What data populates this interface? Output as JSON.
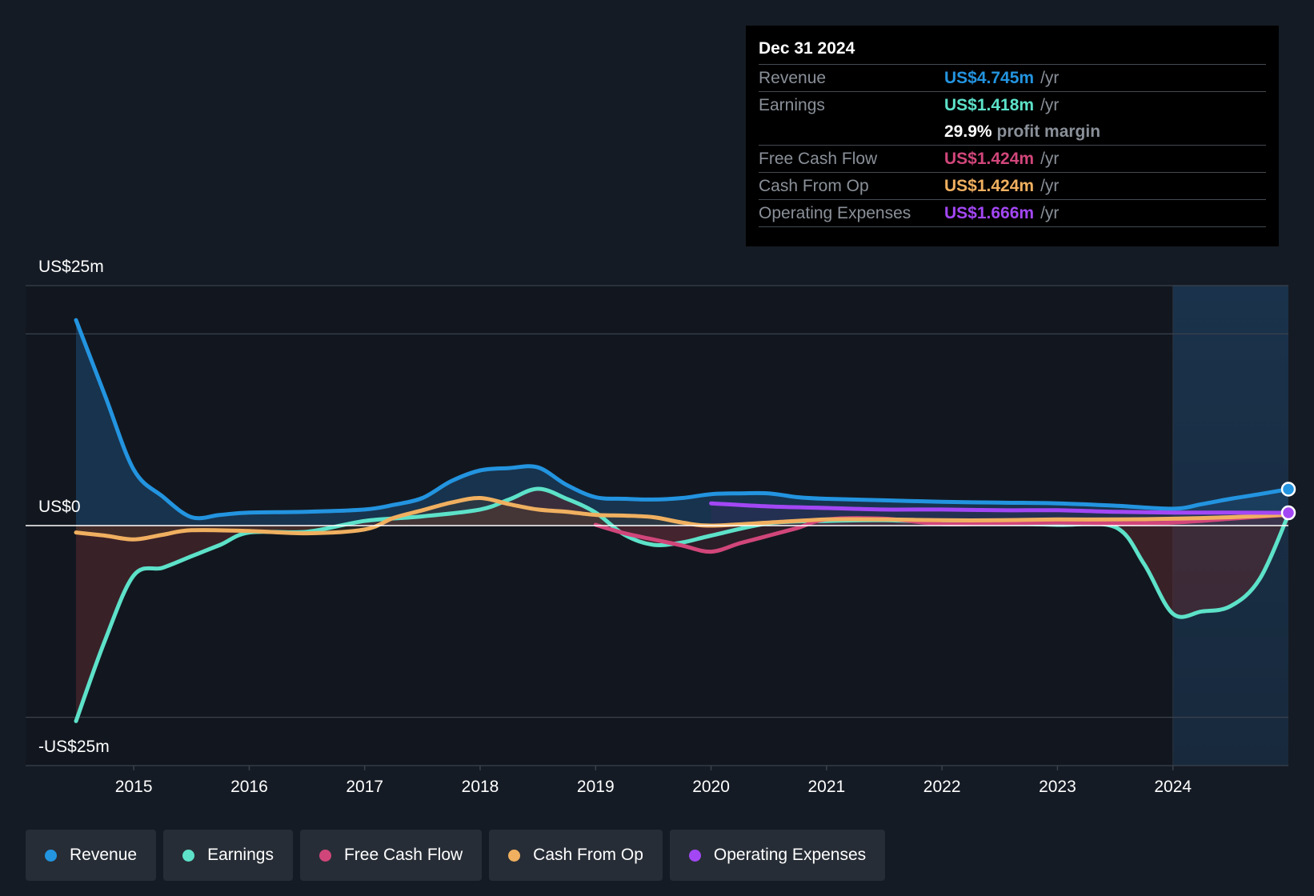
{
  "tooltip": {
    "date": "Dec 31 2024",
    "rows": [
      {
        "label": "Revenue",
        "value": "US$4.745m",
        "unit": "/yr",
        "color": "#2394e0"
      },
      {
        "label": "Earnings",
        "value": "US$1.418m",
        "unit": "/yr",
        "color": "#5de2c9"
      },
      {
        "margin_value": "29.9%",
        "margin_text": "profit margin"
      },
      {
        "label": "Free Cash Flow",
        "value": "US$1.424m",
        "unit": "/yr",
        "color": "#d1467a"
      },
      {
        "label": "Cash From Op",
        "value": "US$1.424m",
        "unit": "/yr",
        "color": "#f0b060"
      },
      {
        "label": "Operating Expenses",
        "value": "US$1.666m",
        "unit": "/yr",
        "color": "#a347f5"
      }
    ]
  },
  "legend": [
    {
      "label": "Revenue",
      "color": "#2394e0"
    },
    {
      "label": "Earnings",
      "color": "#5de2c9"
    },
    {
      "label": "Free Cash Flow",
      "color": "#d1467a"
    },
    {
      "label": "Cash From Op",
      "color": "#f0b060"
    },
    {
      "label": "Operating Expenses",
      "color": "#a347f5"
    }
  ],
  "chart_data": {
    "type": "line",
    "title": "",
    "xlabel": "",
    "ylabel": "",
    "y_top_label": "US$25m",
    "y_zero_label": "US$0",
    "y_bottom_label": "-US$25m",
    "xlim": [
      2014.5,
      2025.0
    ],
    "ylim": [
      -31.3,
      31.3
    ],
    "x_ticks": [
      2015,
      2016,
      2017,
      2018,
      2019,
      2020,
      2021,
      2022,
      2023,
      2024
    ],
    "x_tick_labels": [
      "2015",
      "2016",
      "2017",
      "2018",
      "2019",
      "2020",
      "2021",
      "2022",
      "2023",
      "2024"
    ],
    "forecast_start": 2024.0,
    "series": [
      {
        "name": "Revenue",
        "color": "#2394e0",
        "fill": true,
        "x": [
          2014.5,
          2014.75,
          2015.0,
          2015.25,
          2015.5,
          2015.75,
          2016.0,
          2016.5,
          2017.0,
          2017.25,
          2017.5,
          2017.75,
          2018.0,
          2018.25,
          2018.5,
          2018.75,
          2019.0,
          2019.25,
          2019.5,
          2019.75,
          2020.0,
          2020.25,
          2020.5,
          2020.75,
          2021.0,
          2021.5,
          2022.0,
          2022.5,
          2023.0,
          2023.5,
          2024.0,
          2024.25,
          2024.5,
          2024.75,
          2025.0
        ],
        "y": [
          26.8,
          17.0,
          7.3,
          3.8,
          1.1,
          1.4,
          1.7,
          1.8,
          2.1,
          2.7,
          3.6,
          5.8,
          7.2,
          7.5,
          7.6,
          5.3,
          3.7,
          3.5,
          3.4,
          3.6,
          4.1,
          4.2,
          4.2,
          3.7,
          3.5,
          3.3,
          3.1,
          3.0,
          2.9,
          2.6,
          2.2,
          2.8,
          3.5,
          4.1,
          4.745
        ]
      },
      {
        "name": "Earnings",
        "color": "#5de2c9",
        "fill": true,
        "x": [
          2014.5,
          2014.75,
          2015.0,
          2015.25,
          2015.5,
          2015.75,
          2016.0,
          2016.5,
          2017.0,
          2017.5,
          2018.0,
          2018.25,
          2018.5,
          2018.75,
          2019.0,
          2019.25,
          2019.5,
          2019.75,
          2020.0,
          2020.5,
          2021.0,
          2021.5,
          2022.0,
          2022.5,
          2023.0,
          2023.5,
          2023.75,
          2024.0,
          2024.25,
          2024.5,
          2024.75,
          2025.0
        ],
        "y": [
          -25.5,
          -15.0,
          -6.5,
          -5.5,
          -4.0,
          -2.5,
          -0.9,
          -0.8,
          0.6,
          1.2,
          2.1,
          3.4,
          4.8,
          3.5,
          1.7,
          -1.2,
          -2.5,
          -2.2,
          -1.3,
          0.3,
          0.6,
          0.7,
          0.4,
          0.3,
          0.1,
          -0.2,
          -5.0,
          -11.5,
          -11.2,
          -10.5,
          -7.0,
          1.418
        ]
      },
      {
        "name": "Free Cash Flow",
        "color": "#d1467a",
        "fill": true,
        "x": [
          2019.0,
          2019.25,
          2019.5,
          2019.75,
          2020.0,
          2020.25,
          2020.5,
          2020.75,
          2021.0,
          2021.5,
          2022.0,
          2022.5,
          2023.0,
          2023.5,
          2024.0,
          2024.5,
          2025.0
        ],
        "y": [
          0.1,
          -1.0,
          -1.8,
          -2.6,
          -3.4,
          -2.3,
          -1.3,
          -0.3,
          0.8,
          0.9,
          0.2,
          0.3,
          0.4,
          0.3,
          0.4,
          0.9,
          1.424
        ]
      },
      {
        "name": "Cash From Op",
        "color": "#f0b060",
        "fill": true,
        "x": [
          2014.5,
          2014.75,
          2015.0,
          2015.25,
          2015.5,
          2016.0,
          2016.5,
          2017.0,
          2017.25,
          2017.5,
          2017.75,
          2018.0,
          2018.25,
          2018.5,
          2018.75,
          2019.0,
          2019.25,
          2019.5,
          2019.75,
          2020.0,
          2020.5,
          2021.0,
          2021.5,
          2022.0,
          2022.5,
          2023.0,
          2023.5,
          2024.0,
          2024.5,
          2025.0
        ],
        "y": [
          -0.9,
          -1.3,
          -1.8,
          -1.2,
          -0.6,
          -0.7,
          -1.0,
          -0.5,
          1.0,
          2.0,
          3.0,
          3.6,
          2.8,
          2.1,
          1.8,
          1.4,
          1.3,
          1.1,
          0.4,
          0.0,
          0.4,
          0.8,
          0.8,
          0.7,
          0.7,
          0.8,
          0.8,
          0.9,
          1.1,
          1.424
        ]
      },
      {
        "name": "Operating Expenses",
        "color": "#a347f5",
        "fill": true,
        "x": [
          2020.0,
          2020.5,
          2021.0,
          2021.5,
          2022.0,
          2022.5,
          2023.0,
          2023.5,
          2024.0,
          2024.5,
          2025.0
        ],
        "y": [
          2.9,
          2.5,
          2.3,
          2.1,
          2.1,
          2.0,
          2.0,
          1.8,
          1.7,
          1.7,
          1.666
        ]
      }
    ]
  }
}
